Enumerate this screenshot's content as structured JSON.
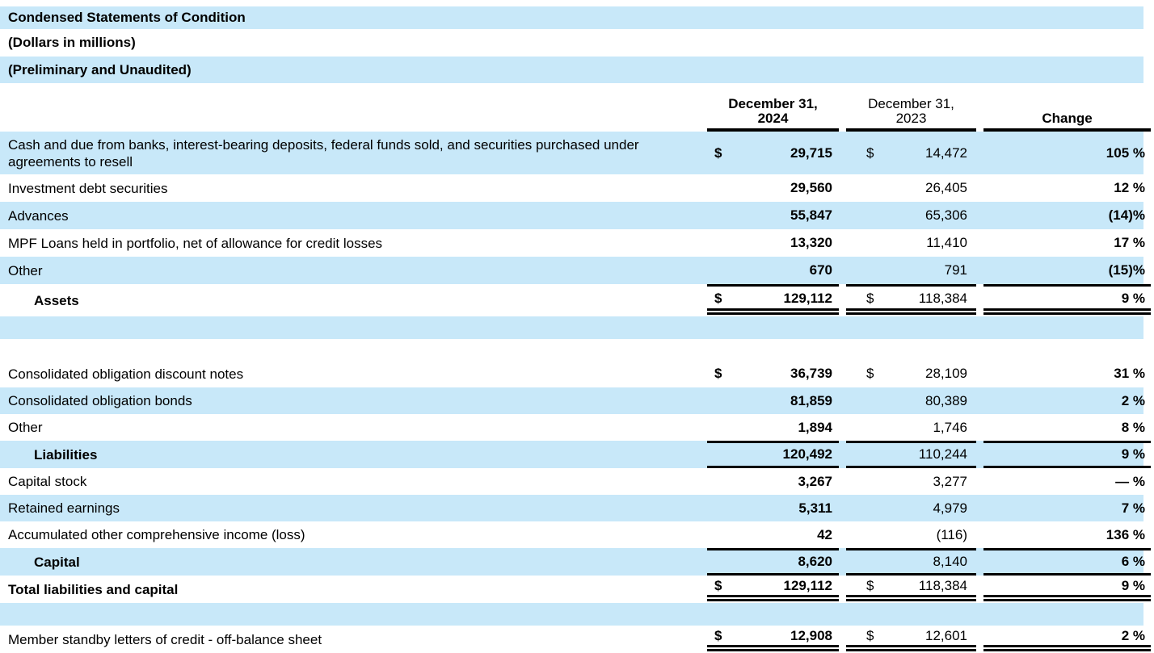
{
  "titles": {
    "main": "Condensed Statements of Condition",
    "sub1": "(Dollars in millions)",
    "sub2": "(Preliminary and Unaudited)"
  },
  "colors": {
    "stripe_blue": "#c8e8f9",
    "border_black": "#000000"
  },
  "header": {
    "col2024_line1": "December 31,",
    "col2024_line2": "2024",
    "col2023_line1": "December 31,",
    "col2023_line2": "2023",
    "change": "Change"
  },
  "rows": [
    {
      "label": "Cash and due from banks, interest-bearing deposits, federal funds sold, and securities purchased under agreements to resell",
      "d24": "$",
      "v24": "29,715",
      "d23": "$",
      "v23": "14,472",
      "chg": "105 %"
    },
    {
      "label": "Investment debt securities",
      "d24": "",
      "v24": "29,560",
      "d23": "",
      "v23": "26,405",
      "chg": "12 %"
    },
    {
      "label": "Advances",
      "d24": "",
      "v24": "55,847",
      "d23": "",
      "v23": "65,306",
      "chg": "(14)%"
    },
    {
      "label": "MPF Loans held in portfolio, net of allowance for credit losses",
      "d24": "",
      "v24": "13,320",
      "d23": "",
      "v23": "11,410",
      "chg": "17 %"
    },
    {
      "label": "Other",
      "d24": "",
      "v24": "670",
      "d23": "",
      "v23": "791",
      "chg": "(15)%"
    },
    {
      "label": "Assets",
      "d24": "$",
      "v24": "129,112",
      "d23": "$",
      "v23": "118,384",
      "chg": "9 %"
    },
    {
      "label": "Consolidated obligation discount notes",
      "d24": "$",
      "v24": "36,739",
      "d23": "$",
      "v23": "28,109",
      "chg": "31 %"
    },
    {
      "label": "Consolidated obligation bonds",
      "d24": "",
      "v24": "81,859",
      "d23": "",
      "v23": "80,389",
      "chg": "2 %"
    },
    {
      "label": "Other",
      "d24": "",
      "v24": "1,894",
      "d23": "",
      "v23": "1,746",
      "chg": "8 %"
    },
    {
      "label": "Liabilities",
      "d24": "",
      "v24": "120,492",
      "d23": "",
      "v23": "110,244",
      "chg": "9 %"
    },
    {
      "label": "Capital stock",
      "d24": "",
      "v24": "3,267",
      "d23": "",
      "v23": "3,277",
      "chg": "— %"
    },
    {
      "label": "Retained earnings",
      "d24": "",
      "v24": "5,311",
      "d23": "",
      "v23": "4,979",
      "chg": "7 %"
    },
    {
      "label": "Accumulated other comprehensive income (loss)",
      "d24": "",
      "v24": "42",
      "d23": "",
      "v23": "(116)",
      "chg": "136 %"
    },
    {
      "label": "Capital",
      "d24": "",
      "v24": "8,620",
      "d23": "",
      "v23": "8,140",
      "chg": "6 %"
    },
    {
      "label": "Total liabilities and capital",
      "d24": "$",
      "v24": "129,112",
      "d23": "$",
      "v23": "118,384",
      "chg": "9 %"
    },
    {
      "label": "Member standby letters of credit - off-balance sheet",
      "d24": "$",
      "v24": "12,908",
      "d23": "$",
      "v23": "12,601",
      "chg": "2 %"
    }
  ]
}
